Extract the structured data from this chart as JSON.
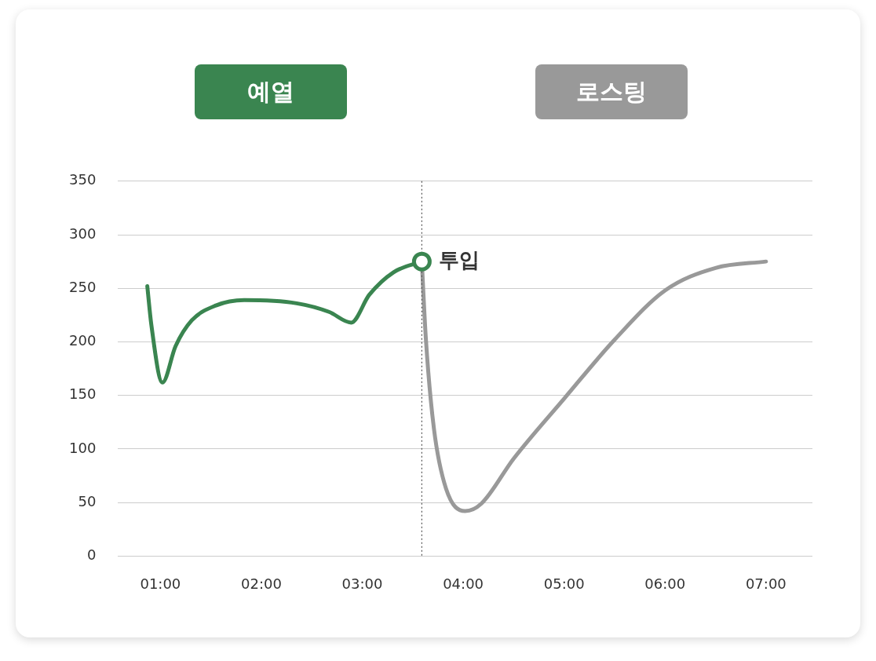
{
  "chart_data": {
    "type": "line",
    "marker": "none",
    "line_style": "solid",
    "grid": "y",
    "legend": "top",
    "xlim": [
      0.58,
      7.46
    ],
    "xticks": [
      {
        "value": 1,
        "label": "01:00"
      },
      {
        "value": 2,
        "label": "02:00"
      },
      {
        "value": 3,
        "label": "03:00"
      },
      {
        "value": 4,
        "label": "04:00"
      },
      {
        "value": 5,
        "label": "05:00"
      },
      {
        "value": 6,
        "label": "06:00"
      },
      {
        "value": 7,
        "label": "07:00"
      }
    ],
    "ylim": [
      0,
      350
    ],
    "yticks": [
      0,
      50,
      100,
      150,
      200,
      250,
      300,
      350
    ],
    "series": [
      {
        "name": "예열",
        "color": "#3a8550",
        "x": [
          0.87,
          0.91,
          1.02,
          1.15,
          1.31,
          1.55,
          1.83,
          2.35,
          2.67,
          2.89,
          3.07,
          3.31,
          3.59
        ],
        "values": [
          252,
          216,
          162,
          196,
          220,
          234,
          239,
          236,
          228,
          218,
          244,
          265,
          275
        ]
      },
      {
        "name": "로스팅",
        "color": "#999999",
        "x": [
          3.59,
          3.63,
          3.71,
          3.83,
          4.02,
          4.18,
          4.5,
          5.0,
          5.5,
          6.0,
          6.5,
          7.0
        ],
        "values": [
          275,
          203,
          119,
          63,
          42,
          49,
          91,
          147,
          202,
          248,
          269,
          275
        ]
      }
    ],
    "ref_lines": [
      {
        "axis": "x",
        "value": 3.59,
        "color": "#555555",
        "line_style": "dotted"
      }
    ],
    "annotations": [
      {
        "text": "투입",
        "x": 3.59,
        "y": 275
      }
    ]
  }
}
